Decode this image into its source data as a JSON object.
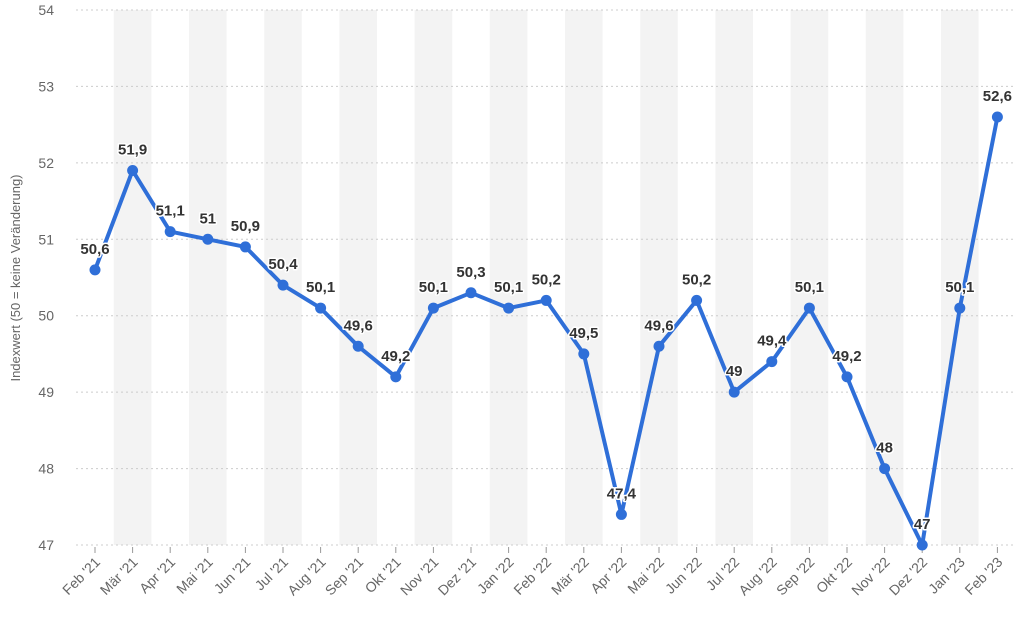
{
  "chart_data": {
    "type": "line",
    "title": "",
    "xlabel": "",
    "ylabel": "Indexwert (50 = keine Veränderung)",
    "ylim": [
      47,
      54
    ],
    "yticks": [
      "47",
      "48",
      "49",
      "50",
      "51",
      "52",
      "53",
      "54"
    ],
    "grid": true,
    "categories": [
      "Feb '21",
      "Mär '21",
      "Apr '21",
      "Mai '21",
      "Jun '21",
      "Jul '21",
      "Aug '21",
      "Sep '21",
      "Okt '21",
      "Nov '21",
      "Dez '21",
      "Jan '22",
      "Feb '22",
      "Mär '22",
      "Apr '22",
      "Mai '22",
      "Jun '22",
      "Jul '22",
      "Aug '22",
      "Sep '22",
      "Okt '22",
      "Nov '22",
      "Dez '22",
      "Jan '23",
      "Feb '23"
    ],
    "series": [
      {
        "values": [
          50.6,
          51.9,
          51.1,
          51.0,
          50.9,
          50.4,
          50.1,
          49.6,
          49.2,
          50.1,
          50.3,
          50.1,
          50.2,
          49.5,
          47.4,
          49.6,
          50.2,
          49.0,
          49.4,
          50.1,
          49.2,
          48.0,
          47.0,
          50.1,
          52.6
        ],
        "labels": [
          "50,6",
          "51,9",
          "51,1",
          "51",
          "50,9",
          "50,4",
          "50,1",
          "49,6",
          "49,2",
          "50,1",
          "50,3",
          "50,1",
          "50,2",
          "49,5",
          "47,4",
          "49,6",
          "50,2",
          "49",
          "49,4",
          "50,1",
          "49,2",
          "48",
          "47",
          "50,1",
          "52,6"
        ],
        "color": "#2f6fd8"
      }
    ],
    "colors": {
      "line": "#2f6fd8",
      "band": "#f3f3f3",
      "grid": "#cccccc",
      "text": "#666666",
      "label": "#333333"
    }
  }
}
